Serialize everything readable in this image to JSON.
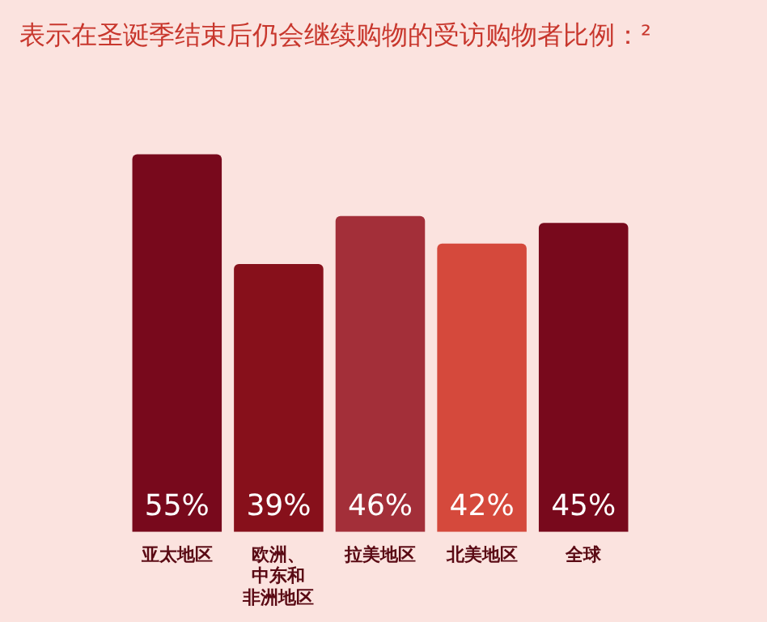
{
  "chart_data": {
    "type": "bar",
    "title": "表示在圣诞季结束后仍会继续购物的受访购物者比例：²",
    "categories": [
      "亚太地区",
      "欧洲、中东和非洲地区",
      "拉美地区",
      "北美地区",
      "全球"
    ],
    "values": [
      55,
      39,
      46,
      42,
      45
    ],
    "colors": [
      "#78091c",
      "#87101b",
      "#a32f39",
      "#d5493c",
      "#78091c"
    ],
    "value_labels": [
      "55%",
      "39%",
      "46%",
      "42%",
      "45%"
    ],
    "grid": false,
    "legend": false
  }
}
